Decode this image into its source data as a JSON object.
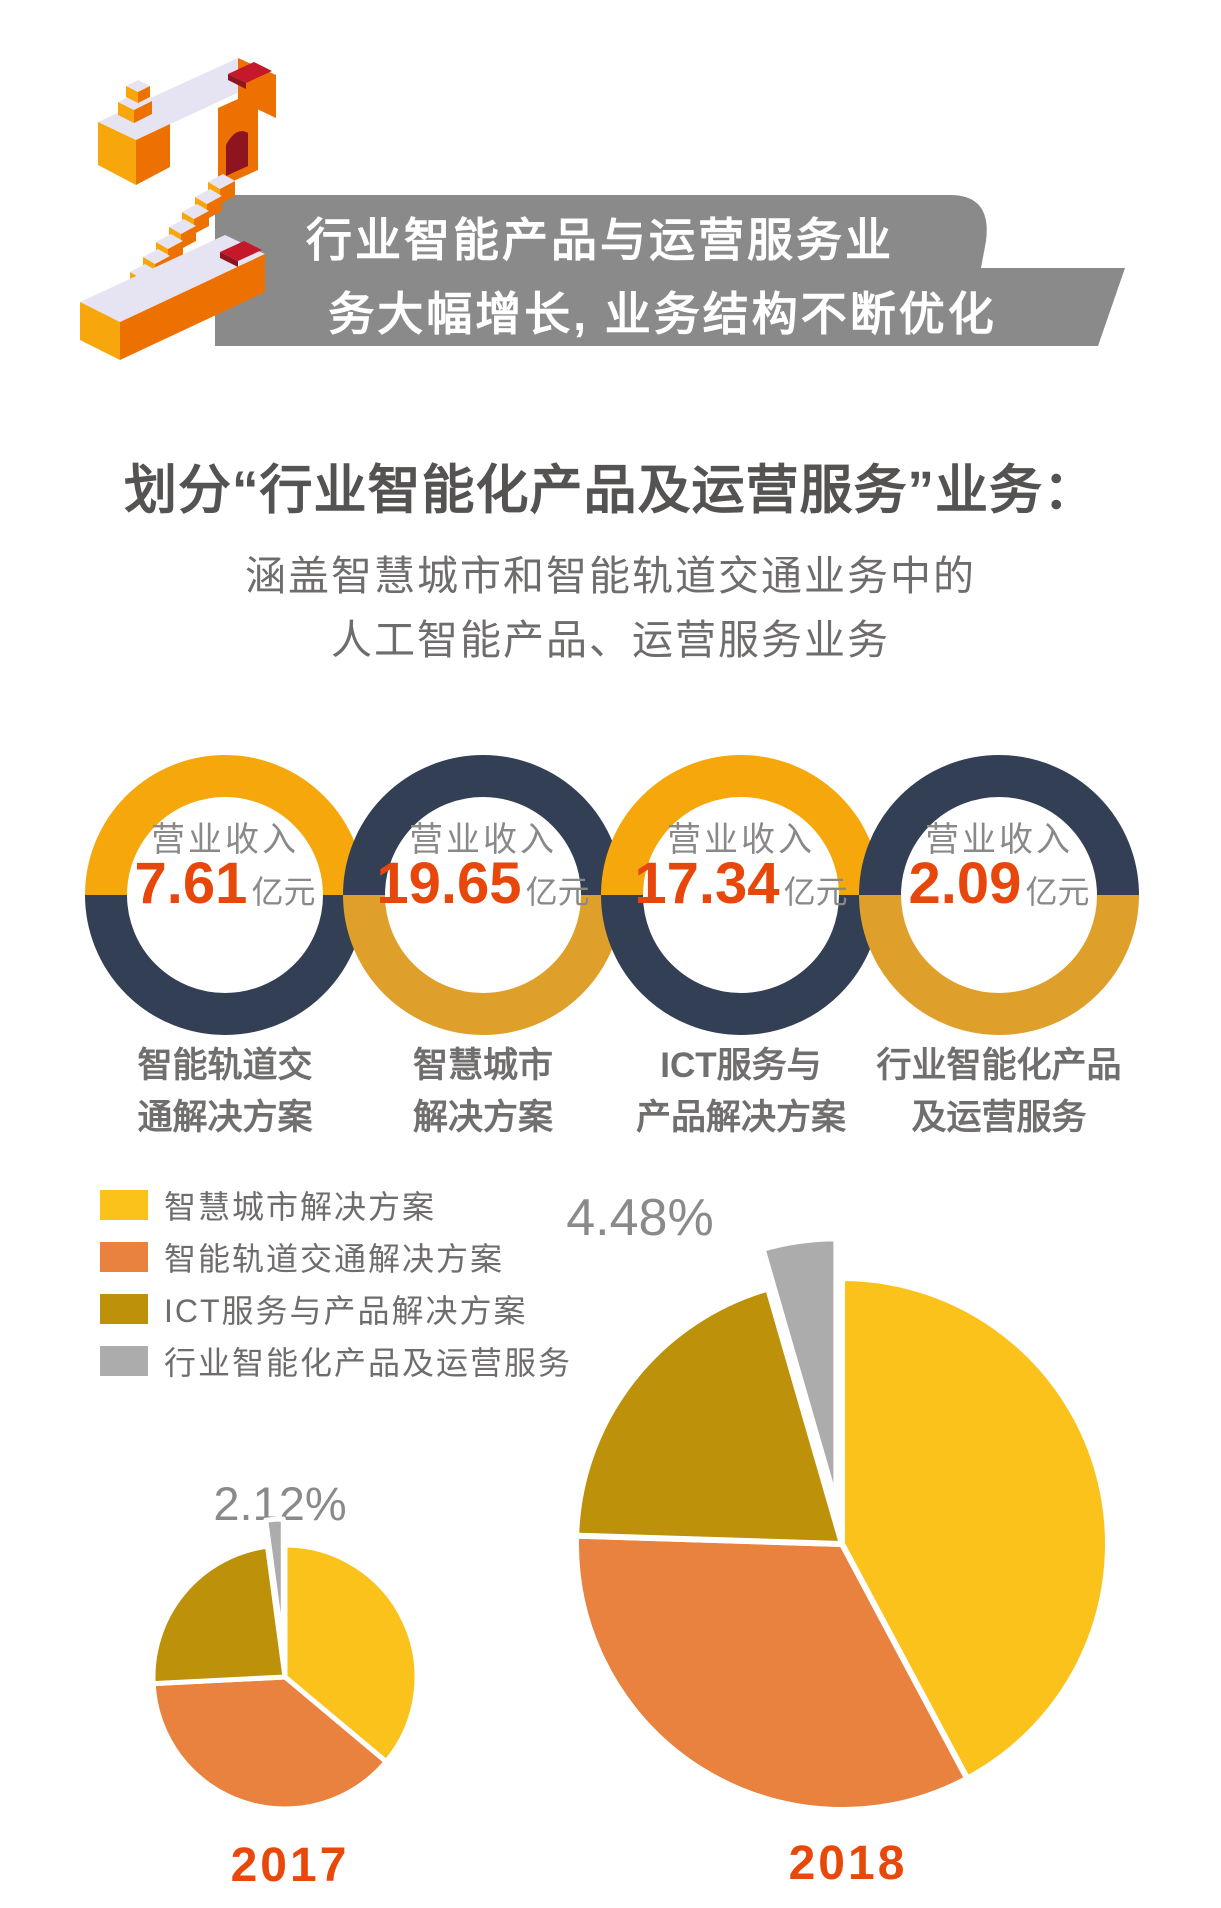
{
  "banner": {
    "line1": "行业智能产品与运营服务业",
    "line2": "务大幅增长, 业务结构不断优化",
    "bg_color": "#8A8A8A"
  },
  "heading": {
    "title": "划分“行业智能化产品及运营服务”业务：",
    "sub1": "涵盖智慧城市和智能轨道交通业务中的",
    "sub2": "人工智能产品、运营服务业务"
  },
  "rings": [
    {
      "prefix": "营业收入",
      "value": "7.61",
      "unit": "亿元",
      "caption1": "智能轨道交",
      "caption2": "通解决方案",
      "top_color": "#F6A70B",
      "bottom_color": "#333F55"
    },
    {
      "prefix": "营业收入",
      "value": "19.65",
      "unit": "亿元",
      "caption1": "智慧城市",
      "caption2": "解决方案",
      "top_color": "#333F55",
      "bottom_color": "#DFA02B"
    },
    {
      "prefix": "营业收入",
      "value": "17.34",
      "unit": "亿元",
      "caption1": "ICT服务与",
      "caption2": "产品解决方案",
      "top_color": "#F6A70B",
      "bottom_color": "#333F55"
    },
    {
      "prefix": "营业收入",
      "value": "2.09",
      "unit": "亿元",
      "caption1": "行业智能化产品",
      "caption2": "及运营服务",
      "top_color": "#333F55",
      "bottom_color": "#DFA02B"
    }
  ],
  "legend": [
    {
      "label": "智慧城市解决方案",
      "color": "#FAC21B"
    },
    {
      "label": "智能轨道交通解决方案",
      "color": "#E8823E"
    },
    {
      "label": "ICT服务与产品解决方案",
      "color": "#BD9109"
    },
    {
      "label": "行业智能化产品及运营服务",
      "color": "#ACACAC"
    }
  ],
  "chart_data": [
    {
      "type": "pie",
      "year": "2017",
      "labels": [
        "智慧城市解决方案",
        "智能轨道交通解决方案",
        "ICT服务与产品解决方案",
        "行业智能化产品及运营服务"
      ],
      "values": [
        36.1,
        38.1,
        23.68,
        2.12
      ],
      "colors": [
        "#FAC21B",
        "#E8823E",
        "#BD9109",
        "#ACACAC"
      ],
      "exploded_index": 3,
      "callout": "2.12%",
      "callout_color": "#8A8A8A",
      "start_angle_deg": 0,
      "legend_position": "top-left",
      "label": "2017"
    },
    {
      "type": "pie",
      "year": "2018",
      "labels": [
        "智慧城市解决方案",
        "智能轨道交通解决方案",
        "ICT服务与产品解决方案",
        "行业智能化产品及运营服务"
      ],
      "values": [
        42.2,
        33.3,
        20.02,
        4.48
      ],
      "colors": [
        "#FAC21B",
        "#E8823E",
        "#BD9109",
        "#ACACAC"
      ],
      "exploded_index": 3,
      "callout": "4.48%",
      "callout_color": "#8A8A8A",
      "start_angle_deg": 0,
      "legend_position": "top-left",
      "label": "2018"
    }
  ]
}
